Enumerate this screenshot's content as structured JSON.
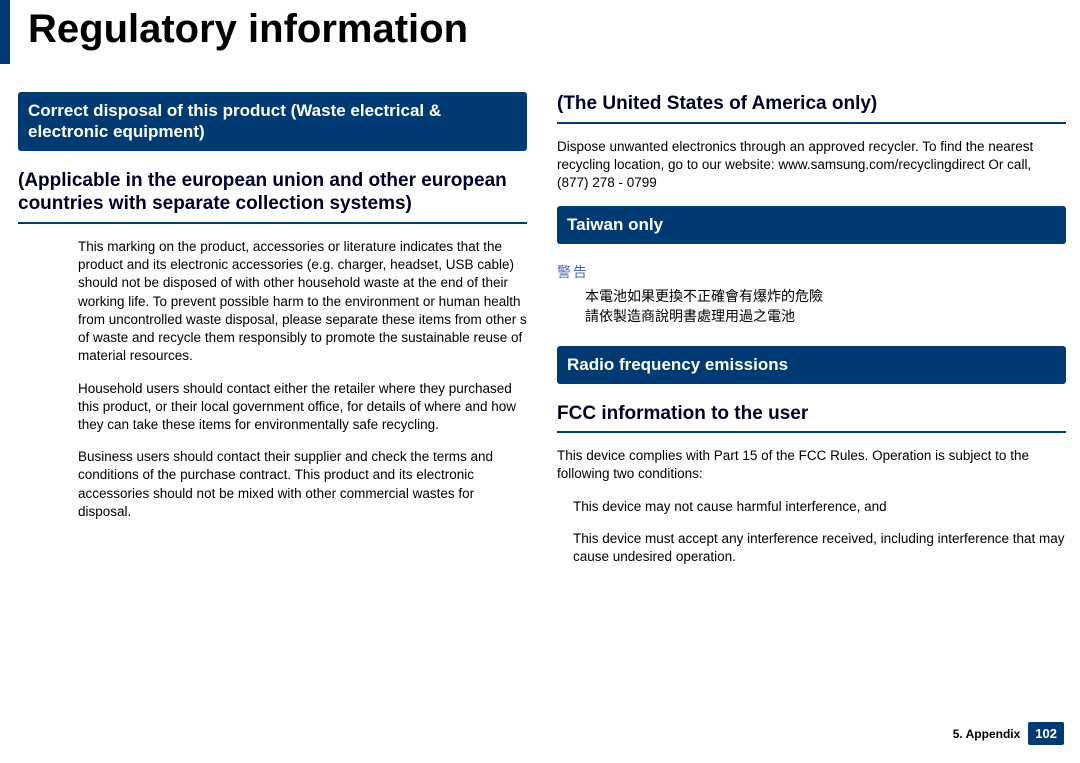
{
  "title": "Regulatory information",
  "colors": {
    "brand": "#003a73",
    "warn_label": "#4a68b5"
  },
  "left": {
    "banner": "Correct disposal of this product (Waste electrical & electronic equipment)",
    "sub_heading": "(Applicable in the european union and other european countries with separate collection systems)",
    "para1": "This marking on the product, accessories or literature indicates that the product and its electronic accessories (e.g. charger, headset, USB cable) should not be disposed of with other household waste at the end of their working life. To prevent possible harm to the environment or human health from uncontrolled waste disposal, please separate these items from other s of waste and recycle them responsibly to promote the sustainable reuse of material resources.",
    "para2": "Household users should contact either the retailer where they purchased this product, or their local government office, for details of where and how they can take these items for environmentally safe recycling.",
    "para3": "Business users should contact their supplier and check the terms and conditions of the purchase contract. This product and its electronic accessories should not be mixed with other commercial wastes for disposal."
  },
  "right": {
    "usa_heading": "(The United States of America only)",
    "usa_body": "Dispose unwanted electronics through an approved recycler. To find the nearest recycling location, go to our website: www.samsung.com/recyclingdirect Or call, (877) 278 - 0799",
    "taiwan_banner": "Taiwan only",
    "taiwan_warn_label": "警告",
    "taiwan_line1": "本電池如果更換不正確會有爆炸的危險",
    "taiwan_line2": "請依製造商說明書處理用過之電池",
    "rf_banner": "Radio frequency emissions",
    "fcc_heading": "FCC information to the user",
    "fcc_intro": "This device complies with Part 15 of the FCC Rules. Operation is subject to the following two conditions:",
    "fcc_item1": "This device may not cause harmful interference, and",
    "fcc_item2": "This device must accept any interference received, including interference that may cause undesired operation."
  },
  "footer": {
    "chapter": "5.  Appendix",
    "page": "102"
  }
}
